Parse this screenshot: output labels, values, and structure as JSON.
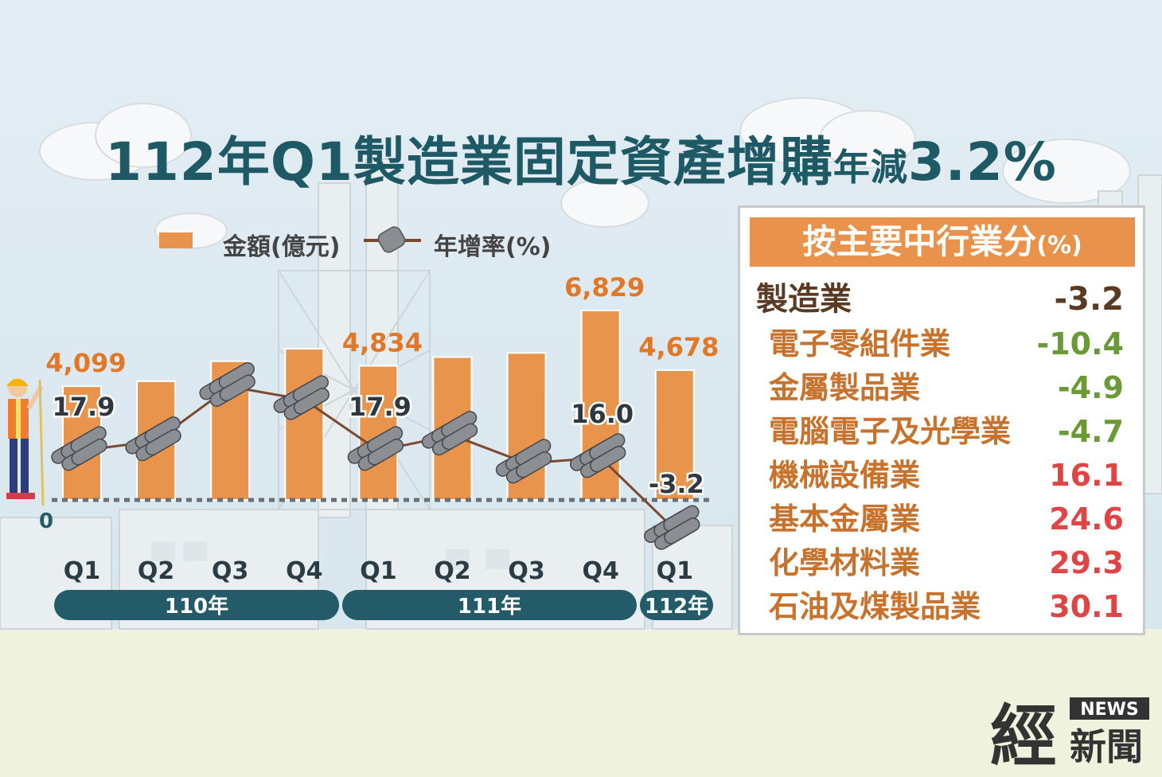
{
  "title": {
    "main": "112年Q1製造業固定資產增購",
    "suffix": "年減",
    "value": "3.2%"
  },
  "legend": {
    "amount_label": "金額(億元)",
    "growth_label": "年增率(%)"
  },
  "colors": {
    "bar": "#e9944d",
    "bar_label": "#e27826",
    "title": "#1e5966",
    "pill": "#245b69",
    "line": "#7a4a30",
    "positive": "#e04545",
    "negative": "#6a9a33",
    "header": "#e9924c"
  },
  "chart_data": {
    "type": "bar",
    "categories": [
      "Q1",
      "Q2",
      "Q3",
      "Q4",
      "Q1",
      "Q2",
      "Q3",
      "Q4",
      "Q1"
    ],
    "years": [
      {
        "label": "110年",
        "span": 4
      },
      {
        "label": "111年",
        "span": 4
      },
      {
        "label": "112年",
        "span": 1
      }
    ],
    "series": [
      {
        "name": "金額(億元)",
        "values": [
          4099,
          4280,
          5000,
          5450,
          4834,
          5150,
          5300,
          6829,
          4678
        ],
        "labels": [
          "4,099",
          "",
          "",
          "",
          "4,834",
          "",
          "",
          "6,829",
          "4,678"
        ]
      },
      {
        "name": "年增率(%)",
        "type": "line",
        "values": [
          17.9,
          20.5,
          35.0,
          31.5,
          17.9,
          22.0,
          14.5,
          16.0,
          -3.2
        ],
        "labels": [
          "17.9",
          "",
          "",
          "",
          "17.9",
          "",
          "",
          "16.0",
          "-3.2"
        ]
      }
    ],
    "zero_label": "0"
  },
  "panel": {
    "heading": "按主要中行業分",
    "heading_unit": "(%)",
    "total": {
      "name": "製造業",
      "value": "-3.2"
    },
    "rows": [
      {
        "name": "電子零組件業",
        "value": "-10.4",
        "sign": "neg"
      },
      {
        "name": "金屬製品業",
        "value": "-4.9",
        "sign": "neg"
      },
      {
        "name": "電腦電子及光學業",
        "value": "-4.7",
        "sign": "neg"
      },
      {
        "name": "機械設備業",
        "value": "16.1",
        "sign": "pos"
      },
      {
        "name": "基本金屬業",
        "value": "24.6",
        "sign": "pos"
      },
      {
        "name": "化學材料業",
        "value": "29.3",
        "sign": "pos"
      },
      {
        "name": "石油及煤製品業",
        "value": "30.1",
        "sign": "pos"
      }
    ]
  },
  "brand": {
    "main": "經",
    "sub": "新聞",
    "tag": "NEWS"
  }
}
